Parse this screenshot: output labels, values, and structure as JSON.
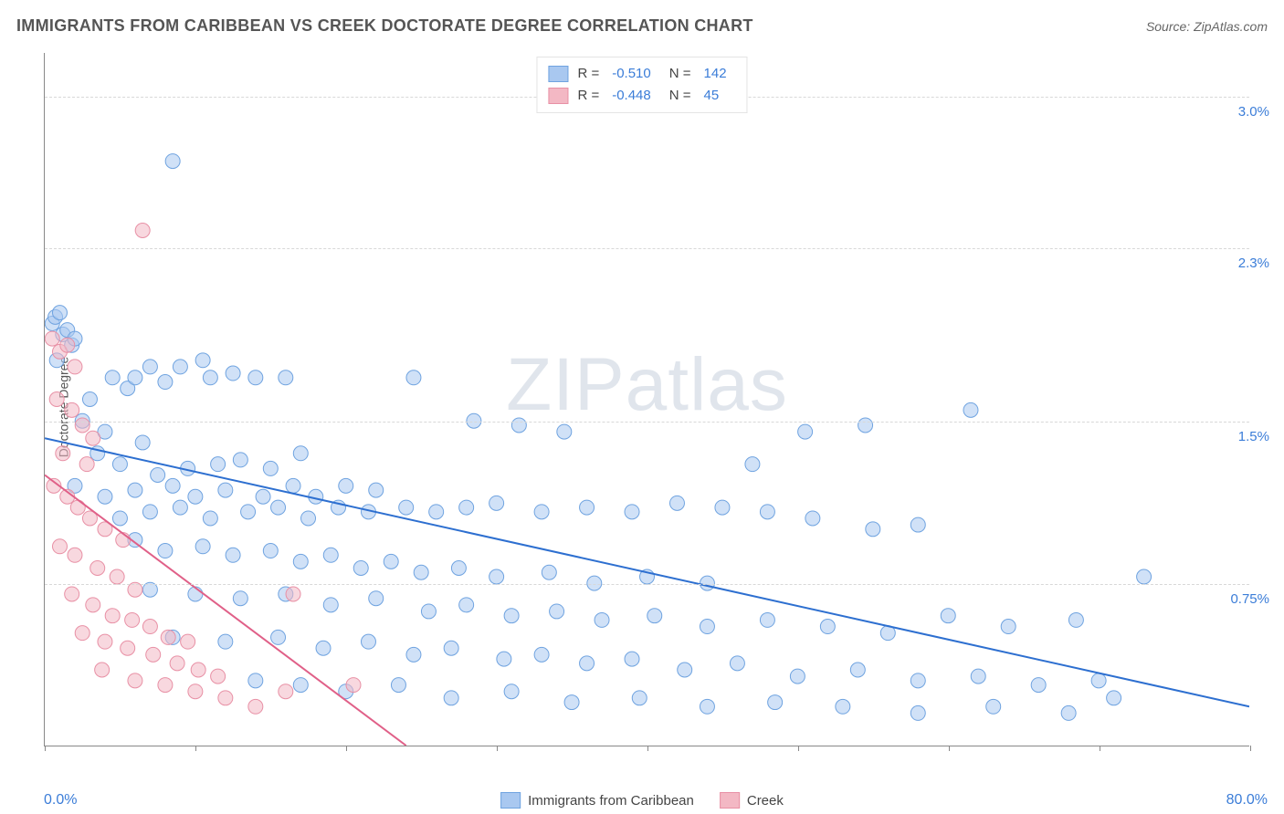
{
  "title": "IMMIGRANTS FROM CARIBBEAN VS CREEK DOCTORATE DEGREE CORRELATION CHART",
  "source": "Source: ZipAtlas.com",
  "watermark": {
    "bold": "ZIP",
    "thin": "atlas"
  },
  "y_axis_label": "Doctorate Degree",
  "chart": {
    "type": "scatter",
    "xlim": [
      0,
      80
    ],
    "ylim": [
      0,
      3.2
    ],
    "x_tick_labels": {
      "min": "0.0%",
      "max": "80.0%"
    },
    "y_ticks": [
      {
        "v": 0.75,
        "label": "0.75%"
      },
      {
        "v": 1.5,
        "label": "1.5%"
      },
      {
        "v": 2.3,
        "label": "2.3%"
      },
      {
        "v": 3.0,
        "label": "3.0%"
      }
    ],
    "x_ticks": [
      0,
      10,
      20,
      30,
      40,
      50,
      60,
      70,
      80
    ],
    "background_color": "#ffffff",
    "grid_color": "#d8d8d8",
    "axis_color": "#888888",
    "marker_radius": 8,
    "marker_opacity": 0.55,
    "line_width": 2
  },
  "series": [
    {
      "name": "Immigrants from Caribbean",
      "color_fill": "#a9c8f0",
      "color_stroke": "#6fa3e0",
      "line_color": "#2d6fd0",
      "R": "-0.510",
      "N": "142",
      "trend": {
        "x1": 0,
        "y1": 1.42,
        "x2": 80,
        "y2": 0.18
      },
      "points": [
        [
          0.5,
          1.95
        ],
        [
          0.7,
          1.98
        ],
        [
          1.0,
          2.0
        ],
        [
          1.2,
          1.9
        ],
        [
          1.5,
          1.92
        ],
        [
          1.8,
          1.85
        ],
        [
          0.8,
          1.78
        ],
        [
          2.0,
          1.88
        ],
        [
          8.5,
          2.7
        ],
        [
          7.0,
          1.75
        ],
        [
          4.5,
          1.7
        ],
        [
          5.5,
          1.65
        ],
        [
          3.0,
          1.6
        ],
        [
          6.0,
          1.7
        ],
        [
          9.0,
          1.75
        ],
        [
          10.5,
          1.78
        ],
        [
          2.5,
          1.5
        ],
        [
          4.0,
          1.45
        ],
        [
          6.5,
          1.4
        ],
        [
          8.0,
          1.68
        ],
        [
          11.0,
          1.7
        ],
        [
          12.5,
          1.72
        ],
        [
          14.0,
          1.7
        ],
        [
          16.0,
          1.7
        ],
        [
          24.5,
          1.7
        ],
        [
          3.5,
          1.35
        ],
        [
          5.0,
          1.3
        ],
        [
          7.5,
          1.25
        ],
        [
          9.5,
          1.28
        ],
        [
          11.5,
          1.3
        ],
        [
          13.0,
          1.32
        ],
        [
          15.0,
          1.28
        ],
        [
          17.0,
          1.35
        ],
        [
          2.0,
          1.2
        ],
        [
          4.0,
          1.15
        ],
        [
          6.0,
          1.18
        ],
        [
          8.5,
          1.2
        ],
        [
          10.0,
          1.15
        ],
        [
          12.0,
          1.18
        ],
        [
          14.5,
          1.15
        ],
        [
          16.5,
          1.2
        ],
        [
          18.0,
          1.15
        ],
        [
          20.0,
          1.2
        ],
        [
          22.0,
          1.18
        ],
        [
          5.0,
          1.05
        ],
        [
          7.0,
          1.08
        ],
        [
          9.0,
          1.1
        ],
        [
          11.0,
          1.05
        ],
        [
          13.5,
          1.08
        ],
        [
          15.5,
          1.1
        ],
        [
          17.5,
          1.05
        ],
        [
          19.5,
          1.1
        ],
        [
          21.5,
          1.08
        ],
        [
          24.0,
          1.1
        ],
        [
          26.0,
          1.08
        ],
        [
          28.0,
          1.1
        ],
        [
          30.0,
          1.12
        ],
        [
          33.0,
          1.08
        ],
        [
          36.0,
          1.1
        ],
        [
          39.0,
          1.08
        ],
        [
          42.0,
          1.12
        ],
        [
          45.0,
          1.1
        ],
        [
          48.0,
          1.08
        ],
        [
          51.0,
          1.05
        ],
        [
          55.0,
          1.0
        ],
        [
          58.0,
          1.02
        ],
        [
          6.0,
          0.95
        ],
        [
          8.0,
          0.9
        ],
        [
          10.5,
          0.92
        ],
        [
          12.5,
          0.88
        ],
        [
          15.0,
          0.9
        ],
        [
          17.0,
          0.85
        ],
        [
          19.0,
          0.88
        ],
        [
          21.0,
          0.82
        ],
        [
          23.0,
          0.85
        ],
        [
          25.0,
          0.8
        ],
        [
          27.5,
          0.82
        ],
        [
          30.0,
          0.78
        ],
        [
          33.5,
          0.8
        ],
        [
          36.5,
          0.75
        ],
        [
          40.0,
          0.78
        ],
        [
          44.0,
          0.75
        ],
        [
          7.0,
          0.72
        ],
        [
          10.0,
          0.7
        ],
        [
          13.0,
          0.68
        ],
        [
          16.0,
          0.7
        ],
        [
          19.0,
          0.65
        ],
        [
          22.0,
          0.68
        ],
        [
          25.5,
          0.62
        ],
        [
          28.0,
          0.65
        ],
        [
          31.0,
          0.6
        ],
        [
          34.0,
          0.62
        ],
        [
          37.0,
          0.58
        ],
        [
          40.5,
          0.6
        ],
        [
          44.0,
          0.55
        ],
        [
          48.0,
          0.58
        ],
        [
          52.0,
          0.55
        ],
        [
          56.0,
          0.52
        ],
        [
          60.0,
          0.6
        ],
        [
          64.0,
          0.55
        ],
        [
          8.5,
          0.5
        ],
        [
          12.0,
          0.48
        ],
        [
          15.5,
          0.5
        ],
        [
          18.5,
          0.45
        ],
        [
          21.5,
          0.48
        ],
        [
          24.5,
          0.42
        ],
        [
          27.0,
          0.45
        ],
        [
          30.5,
          0.4
        ],
        [
          33.0,
          0.42
        ],
        [
          36.0,
          0.38
        ],
        [
          39.0,
          0.4
        ],
        [
          42.5,
          0.35
        ],
        [
          46.0,
          0.38
        ],
        [
          50.0,
          0.32
        ],
        [
          54.0,
          0.35
        ],
        [
          58.0,
          0.3
        ],
        [
          62.0,
          0.32
        ],
        [
          66.0,
          0.28
        ],
        [
          70.0,
          0.3
        ],
        [
          14.0,
          0.3
        ],
        [
          17.0,
          0.28
        ],
        [
          20.0,
          0.25
        ],
        [
          23.5,
          0.28
        ],
        [
          27.0,
          0.22
        ],
        [
          31.0,
          0.25
        ],
        [
          35.0,
          0.2
        ],
        [
          39.5,
          0.22
        ],
        [
          44.0,
          0.18
        ],
        [
          48.5,
          0.2
        ],
        [
          53.0,
          0.18
        ],
        [
          58.0,
          0.15
        ],
        [
          63.0,
          0.18
        ],
        [
          68.0,
          0.15
        ],
        [
          73.0,
          0.78
        ],
        [
          71.0,
          0.22
        ],
        [
          68.5,
          0.58
        ],
        [
          61.5,
          1.55
        ],
        [
          54.5,
          1.48
        ],
        [
          50.5,
          1.45
        ],
        [
          47.0,
          1.3
        ],
        [
          34.5,
          1.45
        ],
        [
          31.5,
          1.48
        ],
        [
          28.5,
          1.5
        ]
      ]
    },
    {
      "name": "Creek",
      "color_fill": "#f3b8c4",
      "color_stroke": "#e890a5",
      "line_color": "#e06088",
      "R": "-0.448",
      "N": "45",
      "trend": {
        "x1": 0,
        "y1": 1.25,
        "x2": 24,
        "y2": 0.0
      },
      "points": [
        [
          0.5,
          1.88
        ],
        [
          1.0,
          1.82
        ],
        [
          1.5,
          1.85
        ],
        [
          2.0,
          1.75
        ],
        [
          0.8,
          1.6
        ],
        [
          1.8,
          1.55
        ],
        [
          2.5,
          1.48
        ],
        [
          3.2,
          1.42
        ],
        [
          1.2,
          1.35
        ],
        [
          2.8,
          1.3
        ],
        [
          0.6,
          1.2
        ],
        [
          1.5,
          1.15
        ],
        [
          2.2,
          1.1
        ],
        [
          3.0,
          1.05
        ],
        [
          4.0,
          1.0
        ],
        [
          5.2,
          0.95
        ],
        [
          1.0,
          0.92
        ],
        [
          2.0,
          0.88
        ],
        [
          3.5,
          0.82
        ],
        [
          4.8,
          0.78
        ],
        [
          6.0,
          0.72
        ],
        [
          1.8,
          0.7
        ],
        [
          3.2,
          0.65
        ],
        [
          4.5,
          0.6
        ],
        [
          5.8,
          0.58
        ],
        [
          7.0,
          0.55
        ],
        [
          8.2,
          0.5
        ],
        [
          9.5,
          0.48
        ],
        [
          2.5,
          0.52
        ],
        [
          4.0,
          0.48
        ],
        [
          5.5,
          0.45
        ],
        [
          7.2,
          0.42
        ],
        [
          8.8,
          0.38
        ],
        [
          10.2,
          0.35
        ],
        [
          11.5,
          0.32
        ],
        [
          3.8,
          0.35
        ],
        [
          6.0,
          0.3
        ],
        [
          8.0,
          0.28
        ],
        [
          10.0,
          0.25
        ],
        [
          12.0,
          0.22
        ],
        [
          14.0,
          0.18
        ],
        [
          16.0,
          0.25
        ],
        [
          16.5,
          0.7
        ],
        [
          20.5,
          0.28
        ],
        [
          6.5,
          2.38
        ]
      ]
    }
  ],
  "legend_bottom": [
    {
      "label": "Immigrants from Caribbean",
      "fill": "#a9c8f0",
      "stroke": "#6fa3e0"
    },
    {
      "label": "Creek",
      "fill": "#f3b8c4",
      "stroke": "#e890a5"
    }
  ]
}
